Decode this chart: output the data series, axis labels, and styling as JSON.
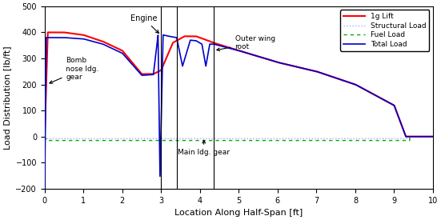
{
  "title": "",
  "xlabel": "Location Along Half-Span [ft]",
  "ylabel": "Load Distribution [lb/ft]",
  "xlim": [
    0,
    10
  ],
  "ylim": [
    -200,
    500
  ],
  "yticks": [
    -200,
    -100,
    0,
    100,
    200,
    300,
    400,
    500
  ],
  "xticks": [
    0,
    1,
    2,
    3,
    4,
    5,
    6,
    7,
    8,
    9,
    10
  ],
  "vlines": [
    3.0,
    3.4,
    4.35
  ],
  "background_color": "#ffffff"
}
